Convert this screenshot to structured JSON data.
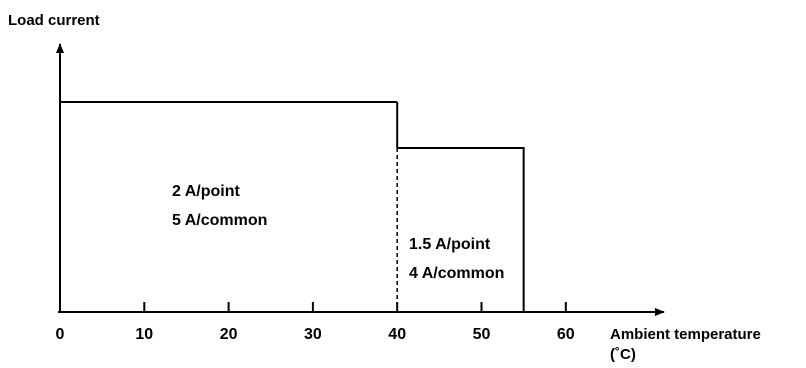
{
  "chart_data": {
    "type": "area",
    "xlabel": "Ambient temperature",
    "xlabel_unit": "(˚C)",
    "ylabel": "Load current",
    "xlim": [
      0,
      70
    ],
    "x_ticks": [
      "0",
      "10",
      "20",
      "30",
      "40",
      "50",
      "60"
    ],
    "grid": false,
    "regions": [
      {
        "x_start": 0,
        "x_end": 40,
        "level": 2,
        "labels": [
          "2 A/point",
          "5 A/common"
        ]
      },
      {
        "x_start": 40,
        "x_end": 55,
        "level": 1.5,
        "labels": [
          "1.5 A/point",
          "4 A/common"
        ]
      }
    ],
    "divider_x": 40
  }
}
